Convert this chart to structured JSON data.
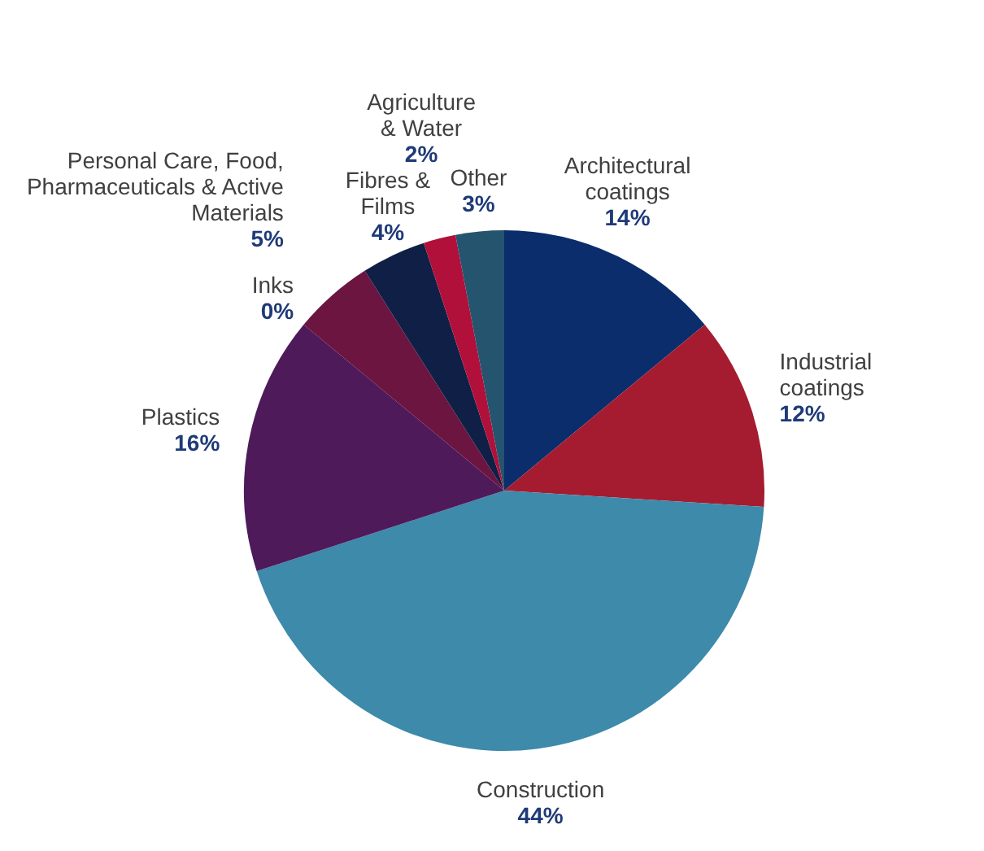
{
  "chart_data": {
    "type": "pie",
    "categories": [
      "Architectural coatings",
      "Industrial coatings",
      "Construction",
      "Plastics",
      "Inks",
      "Personal Care, Food, Pharmaceuticals & Active Materials",
      "Fibres & Films",
      "Agriculture & Water",
      "Other"
    ],
    "values": [
      14,
      12,
      44,
      16,
      0,
      5,
      4,
      2,
      3
    ],
    "value_labels": [
      "14%",
      "12%",
      "44%",
      "16%",
      "0%",
      "5%",
      "4%",
      "2%",
      "3%"
    ],
    "colors": [
      "#0b2d6b",
      "#a51c30",
      "#3d8aab",
      "#4e1a5a",
      "#3a3a3a",
      "#6b1540",
      "#0f1f45",
      "#b0103a",
      "#25546e"
    ],
    "legend": false
  }
}
